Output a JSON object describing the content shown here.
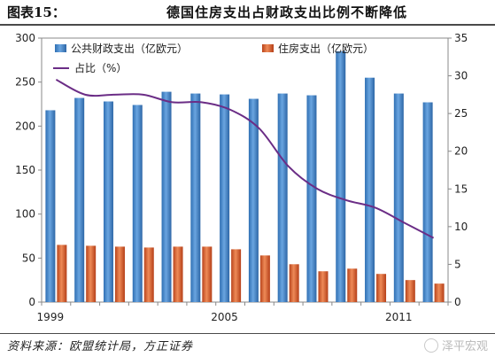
{
  "header": {
    "figure_label": "图表15：",
    "title": "德国住房支出占财政支出比例不断降低"
  },
  "source": "资料来源：欧盟统计局，方正证券",
  "watermark": "泽平宏观",
  "colors": {
    "public_bar": "#4a87c9",
    "housing_bar": "#d35a2a",
    "share_line": "#6b2d86",
    "axis": "#888888"
  },
  "chart_data": {
    "type": "bar",
    "years": [
      1999,
      2000,
      2001,
      2002,
      2003,
      2004,
      2005,
      2006,
      2007,
      2008,
      2009,
      2010,
      2011,
      2012
    ],
    "x_tick_labels": [
      {
        "index": 0,
        "label": "1999"
      },
      {
        "index": 6,
        "label": "2005"
      },
      {
        "index": 12,
        "label": "2011"
      }
    ],
    "left_axis": {
      "min": 0,
      "max": 300,
      "ticks": [
        0,
        50,
        100,
        150,
        200,
        250,
        300
      ]
    },
    "right_axis": {
      "min": 0,
      "max": 35,
      "ticks": [
        0,
        5,
        10,
        15,
        20,
        25,
        30,
        35
      ]
    },
    "grid": false,
    "legend_placement": "top-left",
    "series": [
      {
        "name": "公共财政支出（亿欧元）",
        "kind": "bar",
        "axis": "left",
        "values": [
          218,
          232,
          228,
          224,
          239,
          237,
          236,
          231,
          237,
          235,
          285,
          255,
          237,
          227
        ]
      },
      {
        "name": "住房支出（亿欧元）",
        "kind": "bar",
        "axis": "left",
        "values": [
          65,
          64,
          63,
          62,
          63,
          63,
          60,
          53,
          43,
          35,
          38,
          32,
          25,
          21
        ]
      },
      {
        "name": "占比（%）",
        "kind": "line",
        "axis": "right",
        "values": [
          29.5,
          27.5,
          27.5,
          27.5,
          26.5,
          26.5,
          25.5,
          23,
          18,
          15,
          13.5,
          12.5,
          10.5,
          8.5
        ]
      }
    ]
  }
}
